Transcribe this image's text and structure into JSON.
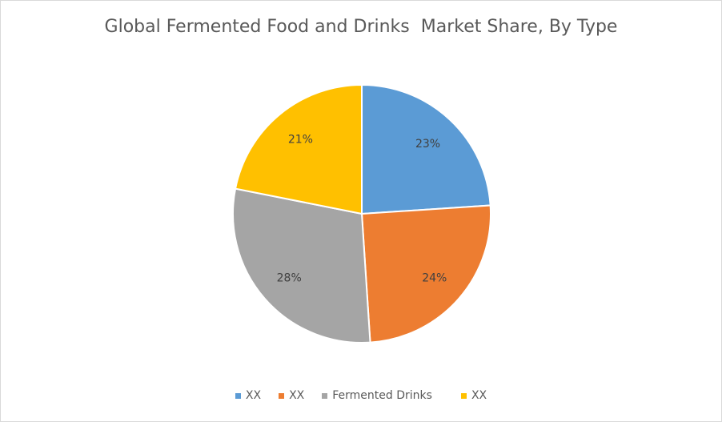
{
  "chart_data": {
    "type": "pie",
    "title": "Global Fermented Food and Drinks  Market Share, By Type",
    "start": "12 o'clock, clockwise",
    "slices": [
      {
        "name": "XX",
        "value": 23,
        "label": "23%",
        "color": "#5b9bd5"
      },
      {
        "name": "XX",
        "value": 24,
        "label": "24%",
        "color": "#ed7d31"
      },
      {
        "name": "Fermented Drinks",
        "value": 28,
        "label": "28%",
        "color": "#a5a5a5"
      },
      {
        "name": "XX",
        "value": 21,
        "label": "21%",
        "color": "#ffc000"
      }
    ],
    "legend_position": "bottom"
  }
}
